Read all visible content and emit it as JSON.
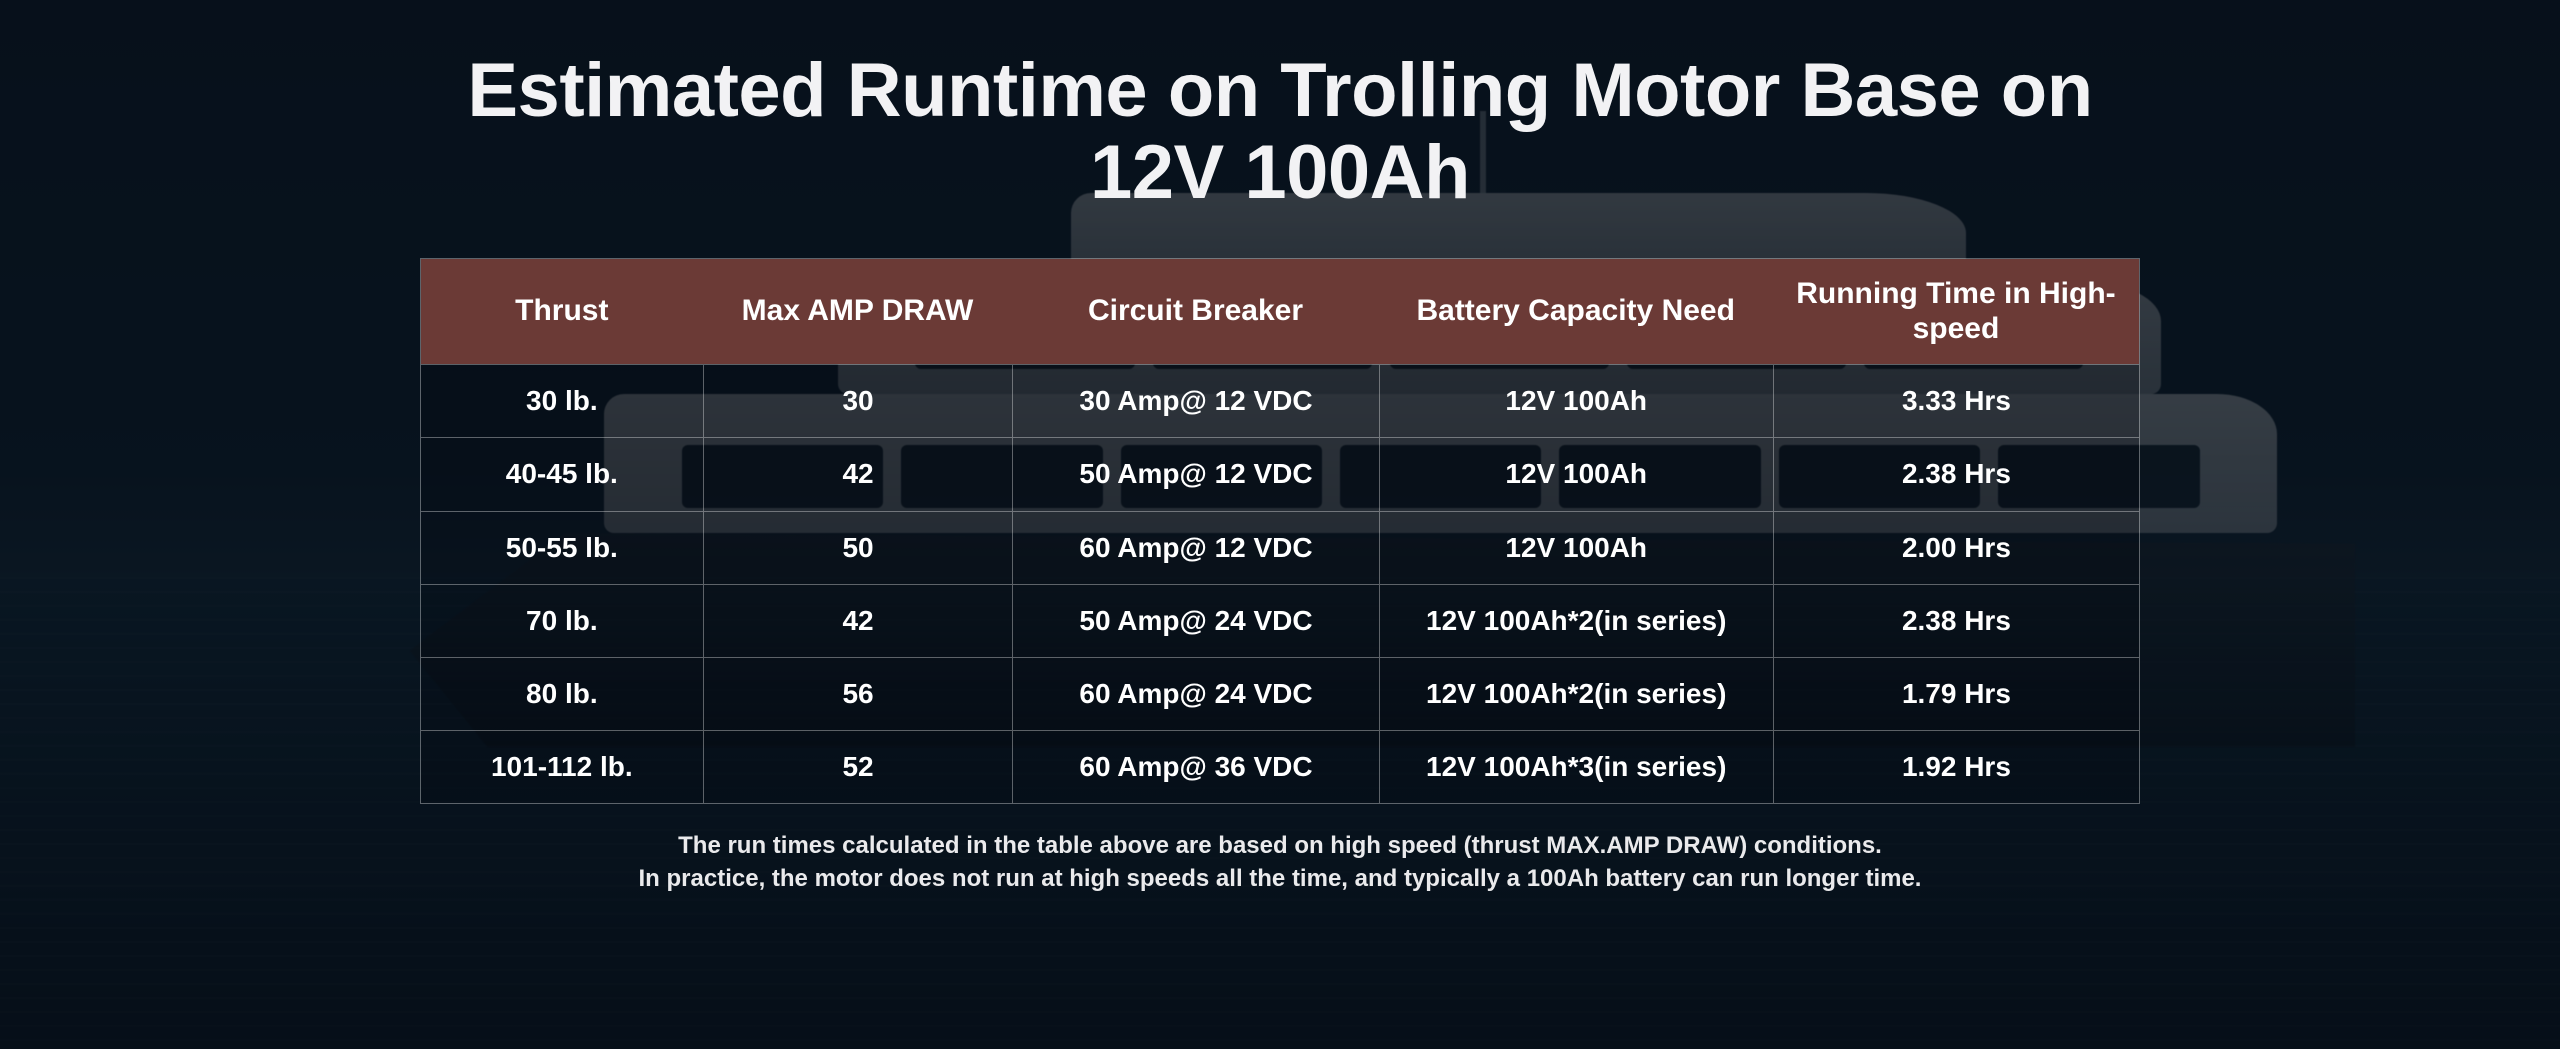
{
  "title": "Estimated Runtime on Trolling Motor Base on 12V 100Ah",
  "footnote_line1": "The run times calculated in the table above are based on high speed (thrust MAX.AMP DRAW) conditions.",
  "footnote_line2": "In practice, the motor does not run at high speeds all the time, and typically a 100Ah battery can run longer time.",
  "table": {
    "type": "table",
    "header_bg": "#6b3a36",
    "border_color": "rgba(255,255,255,0.35)",
    "text_color": "#ffffff",
    "header_fontsize": 30,
    "cell_fontsize": 28,
    "column_widths_fr": [
      1.0,
      1.1,
      1.3,
      1.4,
      1.3
    ],
    "columns": [
      "Thrust",
      "Max AMP DRAW",
      "Circuit Breaker",
      "Battery Capacity Need",
      "Running Time in High-speed"
    ],
    "rows": [
      [
        "30 lb.",
        "30",
        "30 Amp@ 12 VDC",
        "12V 100Ah",
        "3.33 Hrs"
      ],
      [
        "40-45 lb.",
        "42",
        "50 Amp@ 12 VDC",
        "12V 100Ah",
        "2.38 Hrs"
      ],
      [
        "50-55 lb.",
        "50",
        "60 Amp@ 12 VDC",
        "12V 100Ah",
        "2.00 Hrs"
      ],
      [
        "70 lb.",
        "42",
        "50 Amp@ 24 VDC",
        "12V 100Ah*2(in series)",
        "2.38 Hrs"
      ],
      [
        "80 lb.",
        "56",
        "60 Amp@ 24 VDC",
        "12V 100Ah*2(in series)",
        "1.79 Hrs"
      ],
      [
        "101-112 lb.",
        "52",
        "60 Amp@ 36 VDC",
        "12V 100Ah*3(in series)",
        "1.92 Hrs"
      ]
    ]
  },
  "background": {
    "sky_top": "#0b1a28",
    "sky_bottom": "#0d2030",
    "sea_top": "#10293a",
    "sea_bottom": "#081521",
    "overlay": "rgba(5,12,20,0.62)"
  }
}
